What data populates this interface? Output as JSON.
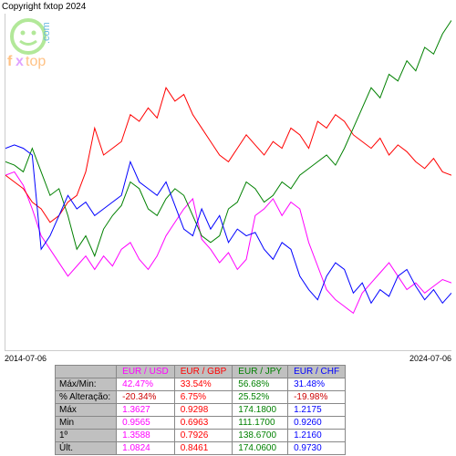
{
  "copyright": "Copyright fxtop 2024",
  "logo": {
    "text1": "fxtop",
    "text2": ".com",
    "face_color": "#7fd957",
    "text_color": "#ff9933"
  },
  "chart": {
    "type": "line",
    "background_color": "#ffffff",
    "border_color": "#cccccc",
    "x_start_label": "2014-07-06",
    "x_end_label": "2024-07-06",
    "xlim": [
      0,
      100
    ],
    "ylim": [
      0,
      100
    ],
    "series": [
      {
        "name": "EUR/USD",
        "color": "#ff00ff",
        "width": 1,
        "points": [
          [
            0,
            52
          ],
          [
            2,
            53
          ],
          [
            4,
            49
          ],
          [
            6,
            42
          ],
          [
            8,
            34
          ],
          [
            10,
            30
          ],
          [
            12,
            26
          ],
          [
            14,
            22
          ],
          [
            16,
            25
          ],
          [
            18,
            28
          ],
          [
            20,
            24
          ],
          [
            22,
            28
          ],
          [
            24,
            25
          ],
          [
            26,
            30
          ],
          [
            28,
            32
          ],
          [
            30,
            27
          ],
          [
            32,
            24
          ],
          [
            34,
            28
          ],
          [
            36,
            34
          ],
          [
            38,
            38
          ],
          [
            40,
            42
          ],
          [
            42,
            45
          ],
          [
            44,
            33
          ],
          [
            46,
            30
          ],
          [
            48,
            26
          ],
          [
            50,
            29
          ],
          [
            52,
            24
          ],
          [
            54,
            27
          ],
          [
            56,
            40
          ],
          [
            58,
            42
          ],
          [
            60,
            45
          ],
          [
            62,
            40
          ],
          [
            64,
            44
          ],
          [
            66,
            42
          ],
          [
            68,
            32
          ],
          [
            70,
            25
          ],
          [
            72,
            18
          ],
          [
            74,
            15
          ],
          [
            76,
            13
          ],
          [
            78,
            11
          ],
          [
            80,
            17
          ],
          [
            82,
            20
          ],
          [
            84,
            23
          ],
          [
            86,
            26
          ],
          [
            88,
            22
          ],
          [
            90,
            18
          ],
          [
            92,
            20
          ],
          [
            94,
            17
          ],
          [
            96,
            19
          ],
          [
            98,
            21
          ],
          [
            100,
            20
          ]
        ]
      },
      {
        "name": "EUR/GBP",
        "color": "#ff0000",
        "width": 1,
        "points": [
          [
            0,
            52
          ],
          [
            2,
            50
          ],
          [
            4,
            48
          ],
          [
            6,
            44
          ],
          [
            8,
            42
          ],
          [
            10,
            38
          ],
          [
            12,
            40
          ],
          [
            14,
            44
          ],
          [
            16,
            46
          ],
          [
            18,
            53
          ],
          [
            20,
            66
          ],
          [
            22,
            58
          ],
          [
            24,
            60
          ],
          [
            26,
            62
          ],
          [
            28,
            70
          ],
          [
            30,
            68
          ],
          [
            32,
            72
          ],
          [
            34,
            69
          ],
          [
            36,
            78
          ],
          [
            38,
            74
          ],
          [
            40,
            76
          ],
          [
            42,
            70
          ],
          [
            44,
            66
          ],
          [
            46,
            62
          ],
          [
            48,
            58
          ],
          [
            50,
            56
          ],
          [
            52,
            60
          ],
          [
            54,
            64
          ],
          [
            56,
            61
          ],
          [
            58,
            58
          ],
          [
            60,
            62
          ],
          [
            62,
            60
          ],
          [
            64,
            66
          ],
          [
            66,
            64
          ],
          [
            68,
            60
          ],
          [
            70,
            68
          ],
          [
            72,
            66
          ],
          [
            74,
            70
          ],
          [
            76,
            68
          ],
          [
            78,
            64
          ],
          [
            80,
            62
          ],
          [
            82,
            60
          ],
          [
            84,
            63
          ],
          [
            86,
            58
          ],
          [
            88,
            61
          ],
          [
            90,
            59
          ],
          [
            92,
            56
          ],
          [
            94,
            54
          ],
          [
            96,
            57
          ],
          [
            98,
            53
          ],
          [
            100,
            52
          ]
        ]
      },
      {
        "name": "EUR/JPY",
        "color": "#008000",
        "width": 1,
        "points": [
          [
            0,
            56
          ],
          [
            2,
            55
          ],
          [
            4,
            53
          ],
          [
            6,
            60
          ],
          [
            8,
            53
          ],
          [
            10,
            46
          ],
          [
            12,
            48
          ],
          [
            14,
            40
          ],
          [
            16,
            30
          ],
          [
            18,
            34
          ],
          [
            20,
            28
          ],
          [
            22,
            36
          ],
          [
            24,
            40
          ],
          [
            26,
            43
          ],
          [
            28,
            50
          ],
          [
            30,
            48
          ],
          [
            32,
            42
          ],
          [
            34,
            40
          ],
          [
            36,
            45
          ],
          [
            38,
            48
          ],
          [
            40,
            46
          ],
          [
            42,
            40
          ],
          [
            44,
            34
          ],
          [
            46,
            32
          ],
          [
            48,
            34
          ],
          [
            50,
            42
          ],
          [
            52,
            44
          ],
          [
            54,
            50
          ],
          [
            56,
            48
          ],
          [
            58,
            44
          ],
          [
            60,
            46
          ],
          [
            62,
            50
          ],
          [
            64,
            48
          ],
          [
            66,
            52
          ],
          [
            68,
            54
          ],
          [
            70,
            56
          ],
          [
            72,
            58
          ],
          [
            74,
            55
          ],
          [
            76,
            60
          ],
          [
            78,
            66
          ],
          [
            80,
            72
          ],
          [
            82,
            78
          ],
          [
            84,
            75
          ],
          [
            86,
            82
          ],
          [
            88,
            80
          ],
          [
            90,
            86
          ],
          [
            92,
            83
          ],
          [
            94,
            90
          ],
          [
            96,
            88
          ],
          [
            98,
            94
          ],
          [
            100,
            98
          ]
        ]
      },
      {
        "name": "EUR/CHF",
        "color": "#0000ff",
        "width": 1,
        "points": [
          [
            0,
            60
          ],
          [
            2,
            61
          ],
          [
            4,
            60
          ],
          [
            6,
            58
          ],
          [
            8,
            30
          ],
          [
            10,
            34
          ],
          [
            12,
            40
          ],
          [
            14,
            46
          ],
          [
            16,
            42
          ],
          [
            18,
            44
          ],
          [
            20,
            40
          ],
          [
            22,
            42
          ],
          [
            24,
            44
          ],
          [
            26,
            46
          ],
          [
            28,
            56
          ],
          [
            30,
            50
          ],
          [
            32,
            48
          ],
          [
            34,
            46
          ],
          [
            36,
            50
          ],
          [
            38,
            43
          ],
          [
            40,
            36
          ],
          [
            42,
            34
          ],
          [
            44,
            42
          ],
          [
            46,
            36
          ],
          [
            48,
            40
          ],
          [
            50,
            32
          ],
          [
            52,
            36
          ],
          [
            54,
            34
          ],
          [
            56,
            35
          ],
          [
            58,
            30
          ],
          [
            60,
            27
          ],
          [
            62,
            32
          ],
          [
            64,
            30
          ],
          [
            66,
            22
          ],
          [
            68,
            18
          ],
          [
            70,
            15
          ],
          [
            72,
            22
          ],
          [
            74,
            26
          ],
          [
            76,
            24
          ],
          [
            78,
            17
          ],
          [
            80,
            20
          ],
          [
            82,
            14
          ],
          [
            84,
            18
          ],
          [
            86,
            16
          ],
          [
            88,
            22
          ],
          [
            90,
            24
          ],
          [
            92,
            19
          ],
          [
            94,
            15
          ],
          [
            96,
            18
          ],
          [
            98,
            14
          ],
          [
            100,
            17
          ]
        ]
      }
    ]
  },
  "table": {
    "header_bg": "#c0c0c0",
    "columns": [
      {
        "label": "EUR / USD",
        "color": "#ff00ff"
      },
      {
        "label": "EUR / GBP",
        "color": "#ff0000"
      },
      {
        "label": "EUR / JPY",
        "color": "#008000"
      },
      {
        "label": "EUR / CHF",
        "color": "#0000ff"
      }
    ],
    "rows": [
      {
        "label": "Máx/Min:",
        "cells": [
          "42.47%",
          "33.54%",
          "56.68%",
          "31.48%"
        ],
        "neg": [
          false,
          false,
          false,
          false
        ]
      },
      {
        "label": "% Alteração:",
        "cells": [
          "-20.34%",
          "6.75%",
          "25.52%",
          "-19.98%"
        ],
        "neg": [
          true,
          false,
          false,
          true
        ]
      },
      {
        "label": "Máx",
        "cells": [
          "1.3627",
          "0.9298",
          "174.1800",
          "1.2175"
        ],
        "neg": [
          false,
          false,
          false,
          false
        ]
      },
      {
        "label": "Min",
        "cells": [
          "0.9565",
          "0.6963",
          "111.1700",
          "0.9260"
        ],
        "neg": [
          false,
          false,
          false,
          false
        ]
      },
      {
        "label": "1º",
        "cells": [
          "1.3588",
          "0.7926",
          "138.6700",
          "1.2160"
        ],
        "neg": [
          false,
          false,
          false,
          false
        ]
      },
      {
        "label": "Últ.",
        "cells": [
          "1.0824",
          "0.8461",
          "174.0600",
          "0.9730"
        ],
        "neg": [
          false,
          false,
          false,
          false
        ]
      }
    ]
  }
}
